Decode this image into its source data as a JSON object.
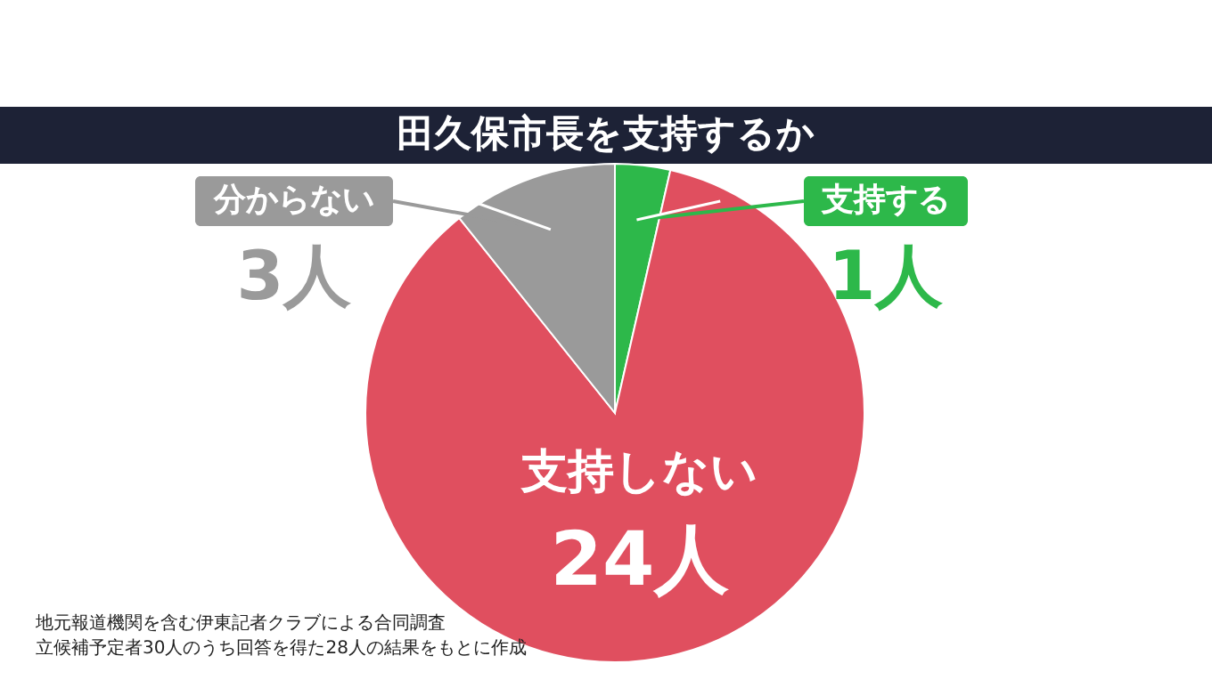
{
  "chart_data": {
    "type": "pie",
    "title": "田久保市長を支持するか",
    "categories": [
      "支持する",
      "支持しない",
      "分からない"
    ],
    "values": [
      1,
      24,
      3
    ],
    "colors": [
      "#2db84a",
      "#e04f5f",
      "#9a9a9a"
    ],
    "value_labels": [
      "1人",
      "24人",
      "3人"
    ],
    "annotations": [
      "地元報道機関を含む伊東記者クラブによる合同調査",
      "立候補予定者30人のうち回答を得た28人の結果をもとに作成"
    ]
  }
}
